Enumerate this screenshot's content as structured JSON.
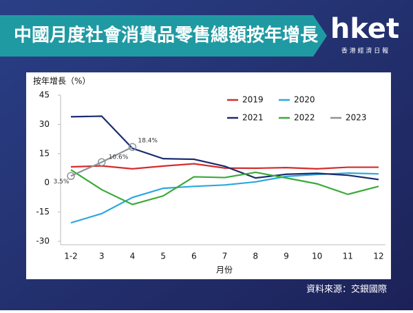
{
  "brand": {
    "name": "hket",
    "tagline": "香 港 經 濟 日 報"
  },
  "chart_data": {
    "type": "line",
    "title": "中國月度社會消費品零售總額按年增長",
    "y_label": "按年增長（%）",
    "x_label": "月份",
    "source": "資料來源：交銀國際",
    "categories": [
      "1-2",
      "3",
      "4",
      "5",
      "6",
      "7",
      "8",
      "9",
      "10",
      "11",
      "12"
    ],
    "ylim": [
      -30,
      45
    ],
    "yticks": [
      45,
      30,
      15,
      0,
      -15,
      -30
    ],
    "grid": false,
    "series": [
      {
        "name": "2019",
        "color": "#d62b2b",
        "values": [
          8.2,
          8.7,
          7.2,
          8.6,
          9.8,
          7.6,
          7.5,
          7.8,
          7.2,
          8.0,
          8.0
        ]
      },
      {
        "name": "2020",
        "color": "#29a8e0",
        "values": [
          -20.5,
          -15.8,
          -7.5,
          -2.8,
          -1.8,
          -1.1,
          0.5,
          3.3,
          4.3,
          5.0,
          4.6
        ]
      },
      {
        "name": "2021",
        "color": "#1b2c6e",
        "values": [
          33.9,
          34.2,
          17.7,
          12.4,
          12.1,
          8.5,
          2.5,
          4.4,
          4.9,
          3.9,
          1.7
        ]
      },
      {
        "name": "2022",
        "color": "#3aaa35",
        "values": [
          6.7,
          -3.5,
          -11.1,
          -6.7,
          3.1,
          2.7,
          5.4,
          2.5,
          -0.5,
          -5.9,
          -1.8
        ]
      },
      {
        "name": "2023",
        "color": "#8a9399",
        "values": [
          3.5,
          10.6,
          18.4,
          null,
          null,
          null,
          null,
          null,
          null,
          null,
          null
        ],
        "value_labels": [
          "3.5%",
          "10.6%",
          "18.4%",
          null,
          null,
          null,
          null,
          null,
          null,
          null,
          null
        ]
      }
    ]
  }
}
